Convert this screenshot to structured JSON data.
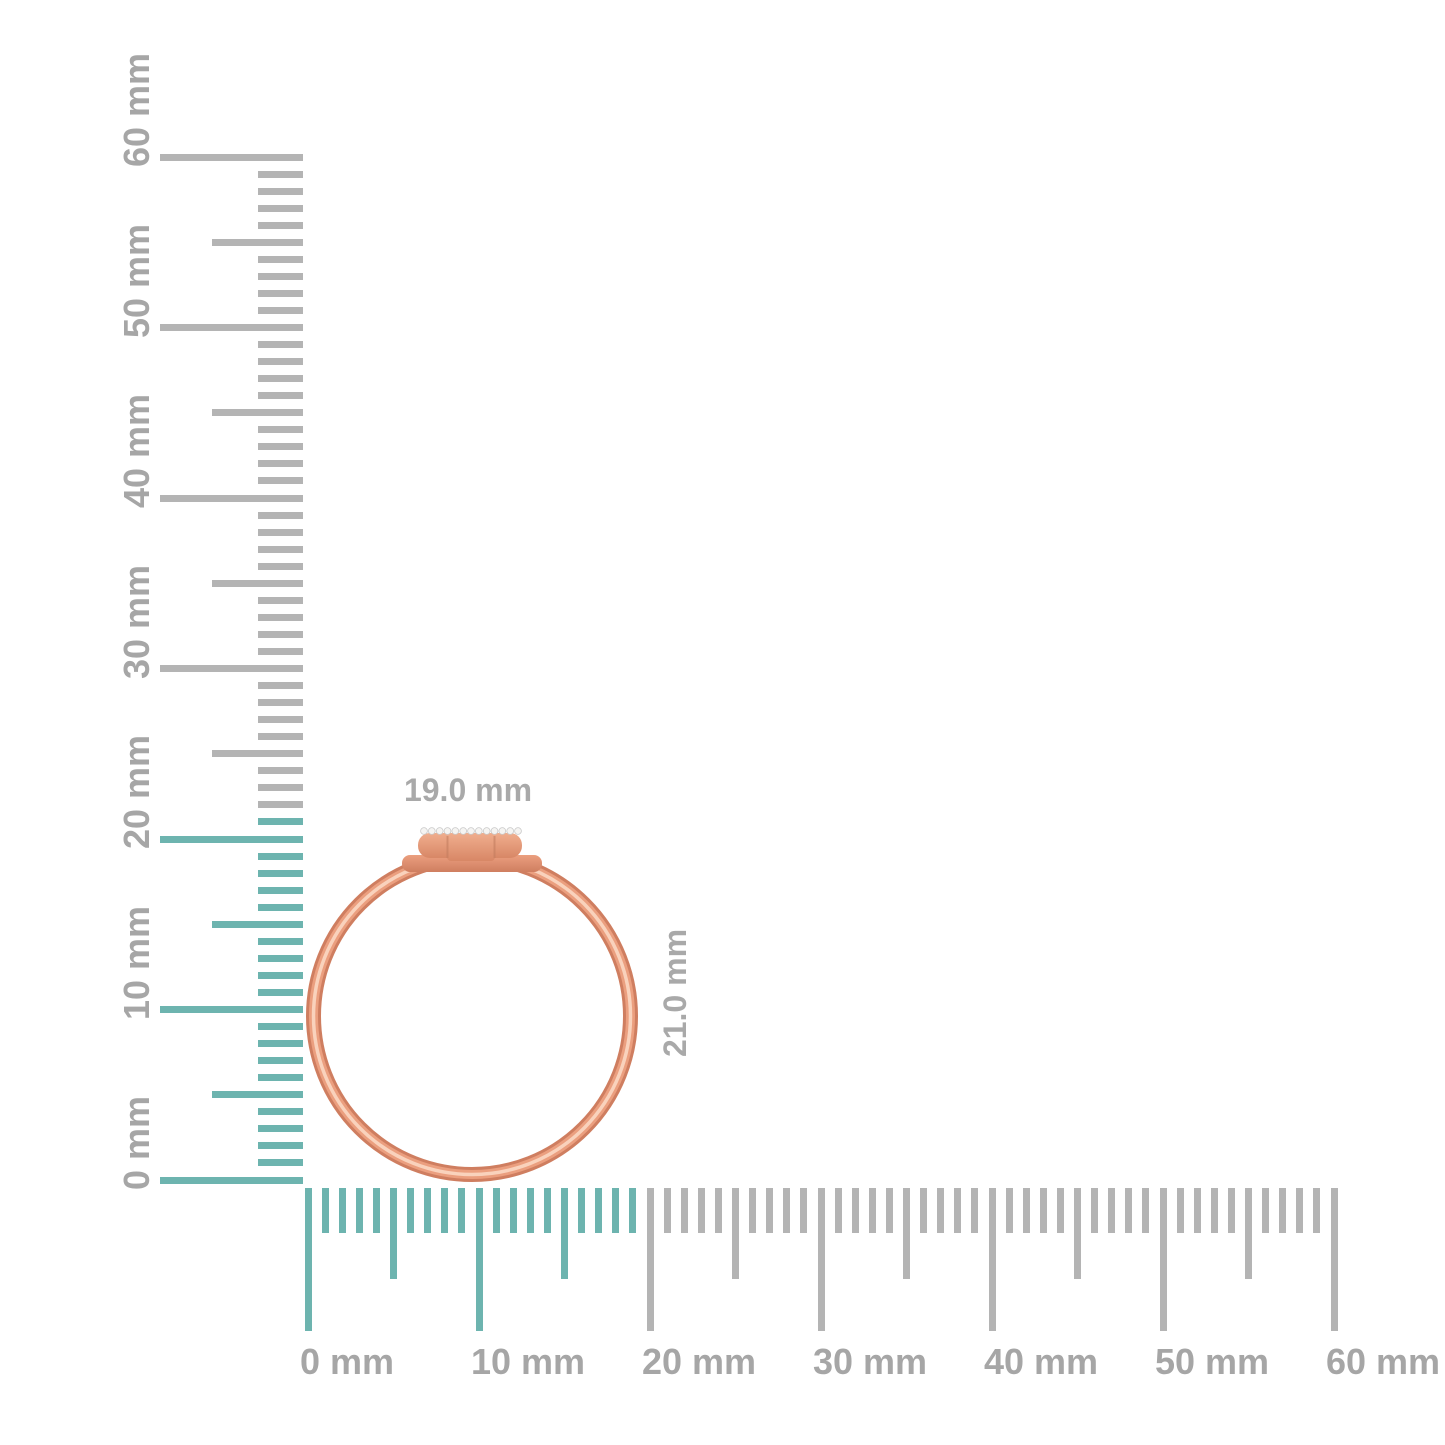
{
  "units": "mm",
  "colors": {
    "background": "#ffffff",
    "highlight_teal": "#6db4af",
    "tick_gray": "#b4b4b4",
    "label_gray": "#a6a6a6",
    "dim_label_gray": "#a9a9a9",
    "gold_dark": "#cf7e60",
    "gold_mid": "#eb9f7f",
    "gold_light": "#f9d2bc",
    "gold_bezel_top": "#f0ae8e",
    "gold_bezel_bottom": "#d88766",
    "seam": "#c07a5c",
    "diamond_fill": "#f5f4f2",
    "diamond_stroke": "#c9c9c9"
  },
  "vertical_ruler": {
    "unit": "mm",
    "min_mm": 0,
    "max_mm": 60,
    "major_step_mm": 10,
    "medium_step_mm": 5,
    "minor_step_mm": 1,
    "highlight_from_mm": 0,
    "highlight_to_mm": 21,
    "labels": [
      "0 mm",
      "10 mm",
      "20 mm",
      "30 mm",
      "40 mm",
      "50 mm",
      "60 mm"
    ]
  },
  "horizontal_ruler": {
    "unit": "mm",
    "min_mm": 0,
    "max_mm": 60,
    "major_step_mm": 10,
    "medium_step_mm": 5,
    "minor_step_mm": 1,
    "highlight_from_mm": 0,
    "highlight_to_mm": 19,
    "labels": [
      "0 mm",
      "10 mm",
      "20 mm",
      "30 mm",
      "40 mm",
      "50 mm",
      "60 mm"
    ]
  },
  "ring": {
    "width_label": "19.0 mm",
    "height_label": "21.0 mm",
    "diamond_count": 13
  }
}
